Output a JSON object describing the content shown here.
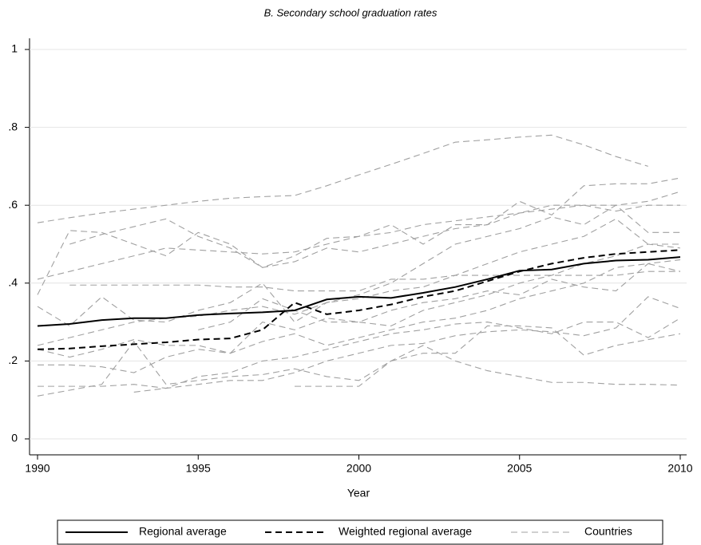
{
  "chart_data": {
    "type": "line",
    "title": "B. Secondary school graduation rates",
    "x_label": "Year",
    "x": [
      1990,
      1991,
      1992,
      1993,
      1994,
      1995,
      1996,
      1997,
      1998,
      1999,
      2000,
      2001,
      2002,
      2003,
      2004,
      2005,
      2006,
      2007,
      2008,
      2009,
      2010
    ],
    "xlim": [
      1990,
      2010
    ],
    "xticks": [
      1990,
      1995,
      2000,
      2005,
      2010
    ],
    "ylim": [
      0,
      1
    ],
    "yticks": [
      0,
      {
        "value": 0.2,
        "label": ".2"
      },
      {
        "value": 0.4,
        "label": ".4"
      },
      {
        "value": 0.6,
        "label": ".6"
      },
      {
        "value": 0.8,
        "label": ".8"
      },
      1
    ],
    "grid": true,
    "series": [
      {
        "name": "Regional average",
        "color": "#000000",
        "dash": "solid",
        "values": [
          0.29,
          0.295,
          0.305,
          0.31,
          0.31,
          0.318,
          0.322,
          0.325,
          0.33,
          0.358,
          0.365,
          0.362,
          0.375,
          0.39,
          0.41,
          0.432,
          0.435,
          0.45,
          0.458,
          0.46,
          0.467
        ]
      },
      {
        "name": "Weighted regional average",
        "color": "#000000",
        "dash": "dashed",
        "values": [
          0.23,
          0.232,
          0.238,
          0.243,
          0.248,
          0.255,
          0.258,
          0.28,
          0.35,
          0.32,
          0.33,
          0.345,
          0.365,
          0.38,
          0.405,
          0.43,
          0.45,
          0.465,
          0.475,
          0.48,
          0.485
        ]
      },
      {
        "name": "Countries",
        "color": "#a0a0a0",
        "dash": "dashed",
        "lines": [
          [
            0.555,
            0.568,
            0.58,
            0.59,
            0.6,
            0.61,
            0.618,
            0.622,
            0.625,
            0.65,
            0.678,
            0.705,
            0.733,
            0.762,
            0.768,
            0.775,
            0.78,
            0.755,
            0.725,
            0.7,
            null
          ],
          [
            0.41,
            0.43,
            0.45,
            0.47,
            0.49,
            0.485,
            0.48,
            0.475,
            0.48,
            0.5,
            0.52,
            0.53,
            0.55,
            0.56,
            0.57,
            0.58,
            0.59,
            0.6,
            0.6,
            0.61,
            0.635
          ],
          [
            0.37,
            0.535,
            0.53,
            0.5,
            0.47,
            0.53,
            0.5,
            0.44,
            0.47,
            0.515,
            0.52,
            0.55,
            0.5,
            0.55,
            0.55,
            0.61,
            0.575,
            0.65,
            0.655,
            0.655,
            0.67
          ],
          [
            0.34,
            0.29,
            0.365,
            0.305,
            0.3,
            0.33,
            0.35,
            0.4,
            0.3,
            0.35,
            0.37,
            0.4,
            0.45,
            0.5,
            0.52,
            0.54,
            0.57,
            0.55,
            0.6,
            0.53,
            0.53
          ],
          [
            0.24,
            0.26,
            0.28,
            0.3,
            0.31,
            0.315,
            0.33,
            0.34,
            0.32,
            0.35,
            0.36,
            0.38,
            0.39,
            0.42,
            0.45,
            0.48,
            0.5,
            0.52,
            0.565,
            0.5,
            0.5
          ],
          [
            0.23,
            0.21,
            0.23,
            0.255,
            0.24,
            0.24,
            0.22,
            0.3,
            0.28,
            0.31,
            0.3,
            0.29,
            0.33,
            0.35,
            0.37,
            0.4,
            0.42,
            0.45,
            0.47,
            0.5,
            0.49
          ],
          [
            0.19,
            0.19,
            0.185,
            0.17,
            0.21,
            0.23,
            0.22,
            0.25,
            0.27,
            0.24,
            0.26,
            0.28,
            0.3,
            0.31,
            0.33,
            0.36,
            0.38,
            0.4,
            0.44,
            0.45,
            0.43
          ],
          [
            0.135,
            0.135,
            0.135,
            0.14,
            0.13,
            0.16,
            0.17,
            0.2,
            0.21,
            0.23,
            0.25,
            0.27,
            0.28,
            0.295,
            0.3,
            0.285,
            0.27,
            0.3,
            0.3,
            0.26,
            0.31
          ],
          [
            0.11,
            0.125,
            0.14,
            0.25,
            0.14,
            0.15,
            0.16,
            0.165,
            0.18,
            0.16,
            0.15,
            0.2,
            0.22,
            0.22,
            0.29,
            0.29,
            0.285,
            0.215,
            0.24,
            0.255,
            0.27
          ],
          [
            null,
            null,
            null,
            0.12,
            0.13,
            0.14,
            0.15,
            0.15,
            0.17,
            0.2,
            0.22,
            0.24,
            0.245,
            0.265,
            0.275,
            0.28,
            0.275,
            0.265,
            0.285,
            0.365,
            0.335
          ],
          [
            null,
            null,
            null,
            null,
            null,
            null,
            null,
            null,
            0.135,
            0.135,
            0.135,
            0.2,
            0.24,
            0.2,
            0.175,
            0.16,
            0.145,
            0.145,
            0.14,
            0.14,
            0.138
          ],
          [
            null,
            0.395,
            0.395,
            0.395,
            0.395,
            0.395,
            0.39,
            0.39,
            0.38,
            0.38,
            0.38,
            0.41,
            0.41,
            0.42,
            0.42,
            0.42,
            0.42,
            0.42,
            0.42,
            0.43,
            0.43
          ],
          [
            null,
            0.5,
            0.525,
            0.545,
            0.565,
            0.52,
            0.49,
            0.44,
            0.455,
            0.49,
            0.48,
            0.5,
            0.52,
            0.54,
            0.55,
            0.58,
            0.6,
            0.6,
            0.585,
            0.6,
            0.6
          ],
          [
            null,
            null,
            null,
            null,
            null,
            0.28,
            0.3,
            0.36,
            0.33,
            0.3,
            0.3,
            0.33,
            0.35,
            0.36,
            0.38,
            0.37,
            0.41,
            0.39,
            0.38,
            0.45,
            0.46
          ]
        ]
      }
    ]
  }
}
